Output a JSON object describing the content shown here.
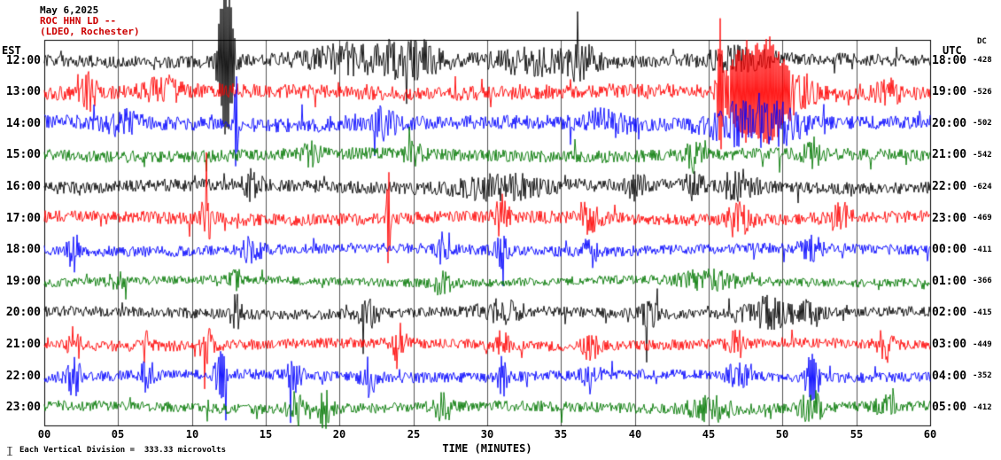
{
  "header": {
    "date": "May 6,2025",
    "station": "ROC HHN LD --",
    "network": "(LDEO, Rochester)"
  },
  "axes": {
    "left_label": "EST",
    "right_label": "UTC",
    "dc_label": "DC",
    "x_title": "TIME (MINUTES)"
  },
  "footer": {
    "scale_note": "Each Vertical Division =  333.33 microvolts"
  },
  "colors": {
    "black": "#000000",
    "red": "#ff0000",
    "blue": "#0000ff",
    "green": "#007700",
    "grid": "#000000"
  },
  "chart_data": {
    "type": "line",
    "title": "ROC HHN LD -- (LDEO, Rochester) helicorder, May 6,2025",
    "xlabel": "TIME (MINUTES)",
    "x_range": [
      0,
      60
    ],
    "x_ticks": [
      "00",
      "05",
      "10",
      "15",
      "20",
      "25",
      "30",
      "35",
      "40",
      "45",
      "50",
      "55",
      "60"
    ],
    "grid": "vertical every 5 minutes",
    "vertical_division_microvolts": 333.33,
    "rows": [
      {
        "est": "12:00",
        "utc": "18:00",
        "dc": "-428",
        "color": "#000000",
        "base_amp": 7,
        "events": [
          [
            12.3,
            13,
            0.35
          ],
          [
            21,
            1.8,
            2.5
          ],
          [
            25,
            2.2,
            1.5
          ],
          [
            33,
            1.5,
            2
          ],
          [
            36.5,
            2.2,
            0.8
          ],
          [
            47,
            1.5,
            1.5
          ]
        ]
      },
      {
        "est": "13:00",
        "utc": "19:00",
        "dc": "-526",
        "color": "#ff0000",
        "base_amp": 8,
        "events": [
          [
            3,
            2,
            0.4
          ],
          [
            8,
            1.5,
            0.8
          ],
          [
            45.8,
            9,
            0.12
          ],
          [
            47.6,
            6,
            1.0
          ],
          [
            49.2,
            5,
            0.7
          ],
          [
            51,
            2.5,
            0.8
          ],
          [
            57,
            1.8,
            0.5
          ]
        ]
      },
      {
        "est": "14:00",
        "utc": "20:00",
        "dc": "-502",
        "color": "#0000ff",
        "base_amp": 8,
        "events": [
          [
            5,
            1.5,
            0.8
          ],
          [
            13,
            6,
            0.1
          ],
          [
            23,
            1.8,
            0.6
          ],
          [
            38,
            1.5,
            1
          ],
          [
            47,
            2.5,
            1.5
          ],
          [
            50,
            2.2,
            1
          ]
        ]
      },
      {
        "est": "15:00",
        "utc": "21:00",
        "dc": "-542",
        "color": "#007700",
        "base_amp": 7,
        "events": [
          [
            18,
            1.5,
            0.5
          ],
          [
            25,
            2,
            0.4
          ],
          [
            44,
            2.5,
            0.3
          ],
          [
            52,
            1.8,
            0.5
          ]
        ]
      },
      {
        "est": "16:00",
        "utc": "22:00",
        "dc": "-624",
        "color": "#000000",
        "base_amp": 7,
        "events": [
          [
            14,
            2,
            0.5
          ],
          [
            31,
            1.6,
            2
          ],
          [
            40,
            2.4,
            0.4
          ],
          [
            44,
            2,
            0.4
          ],
          [
            47,
            2,
            0.8
          ]
        ]
      },
      {
        "est": "17:00",
        "utc": "23:00",
        "dc": "-469",
        "color": "#ff0000",
        "base_amp": 7,
        "events": [
          [
            11,
            3,
            0.3
          ],
          [
            23.3,
            10,
            0.08
          ],
          [
            31,
            3,
            0.3
          ],
          [
            37,
            2.5,
            0.4
          ],
          [
            47,
            2.5,
            0.5
          ],
          [
            54,
            2,
            0.4
          ]
        ]
      },
      {
        "est": "18:00",
        "utc": "00:00",
        "dc": "-411",
        "color": "#0000ff",
        "base_amp": 6,
        "events": [
          [
            2,
            3,
            0.3
          ],
          [
            14,
            2,
            0.5
          ],
          [
            27,
            3,
            0.25
          ],
          [
            31,
            2.5,
            0.3
          ],
          [
            37,
            2.5,
            0.35
          ],
          [
            52,
            2,
            0.5
          ]
        ]
      },
      {
        "est": "19:00",
        "utc": "01:00",
        "dc": "-366",
        "color": "#007700",
        "base_amp": 5,
        "events": [
          [
            5,
            2,
            0.4
          ],
          [
            13,
            2,
            0.3
          ],
          [
            27,
            2,
            0.5
          ],
          [
            45,
            1.8,
            1.5
          ]
        ]
      },
      {
        "est": "20:00",
        "utc": "02:00",
        "dc": "-415",
        "color": "#000000",
        "base_amp": 6,
        "events": [
          [
            13,
            3,
            0.25
          ],
          [
            22,
            2.5,
            0.5
          ],
          [
            31,
            1.8,
            1
          ],
          [
            41,
            2.5,
            0.4
          ],
          [
            49,
            2.8,
            1.2
          ],
          [
            52,
            2,
            0.5
          ]
        ]
      },
      {
        "est": "21:00",
        "utc": "03:00",
        "dc": "-449",
        "color": "#ff0000",
        "base_amp": 6,
        "events": [
          [
            2,
            3,
            0.3
          ],
          [
            7,
            3,
            0.3
          ],
          [
            11,
            3,
            0.3
          ],
          [
            24,
            3,
            0.35
          ],
          [
            31,
            2.5,
            0.4
          ],
          [
            37,
            2.5,
            0.4
          ],
          [
            47,
            2,
            0.5
          ],
          [
            57,
            3,
            0.35
          ]
        ]
      },
      {
        "est": "22:00",
        "utc": "04:00",
        "dc": "-352",
        "color": "#0000ff",
        "base_amp": 6,
        "events": [
          [
            2,
            3,
            0.4
          ],
          [
            7,
            3,
            0.3
          ],
          [
            12,
            4,
            0.3
          ],
          [
            17,
            3,
            0.35
          ],
          [
            22,
            3,
            0.35
          ],
          [
            31,
            3,
            0.3
          ],
          [
            37,
            3,
            0.35
          ],
          [
            47,
            2,
            0.5
          ],
          [
            52,
            4,
            0.35
          ]
        ]
      },
      {
        "est": "23:00",
        "utc": "05:00",
        "dc": "-412",
        "color": "#007700",
        "base_amp": 6,
        "events": [
          [
            17,
            2.5,
            0.4
          ],
          [
            19,
            3,
            0.3
          ],
          [
            27,
            3,
            0.4
          ],
          [
            45,
            2,
            1
          ],
          [
            52,
            3,
            0.5
          ],
          [
            57,
            2,
            0.4
          ]
        ]
      }
    ]
  }
}
